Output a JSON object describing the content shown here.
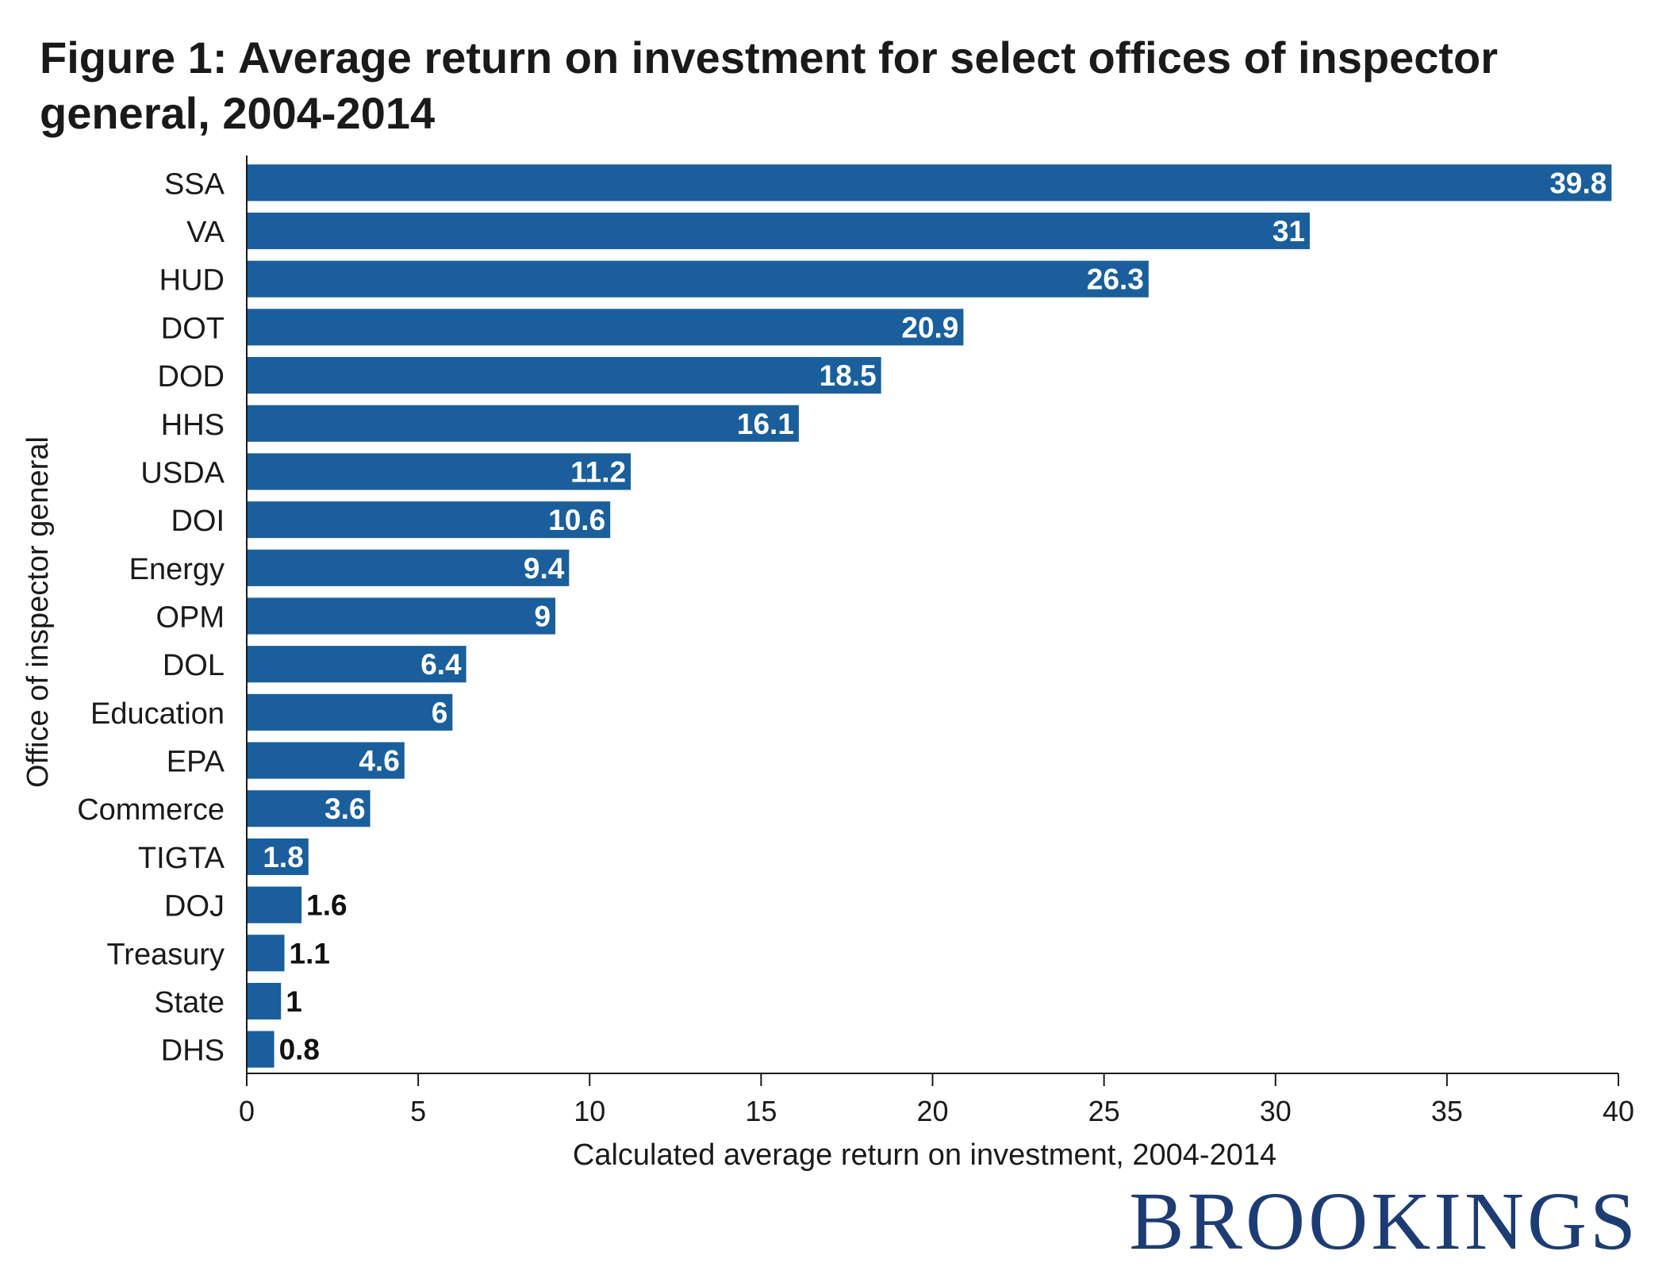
{
  "brand": "BROOKINGS",
  "chart_data": {
    "type": "bar",
    "orientation": "horizontal",
    "title": "Figure 1: Average return on investment for select offices of inspector general, 2004-2014",
    "xlabel": "Calculated average return on investment, 2004-2014",
    "ylabel": "Office of inspector general",
    "xlim": [
      0,
      40
    ],
    "xticks": [
      0,
      5,
      10,
      15,
      20,
      25,
      30,
      35,
      40
    ],
    "grid": false,
    "legend": "none",
    "bar_color": "#1a5f9c",
    "categories": [
      "SSA",
      "VA",
      "HUD",
      "DOT",
      "DOD",
      "HHS",
      "USDA",
      "DOI",
      "Energy",
      "OPM",
      "DOL",
      "Education",
      "EPA",
      "Commerce",
      "TIGTA",
      "DOJ",
      "Treasury",
      "State",
      "DHS"
    ],
    "values": [
      39.8,
      31,
      26.3,
      20.9,
      18.5,
      16.1,
      11.2,
      10.6,
      9.4,
      9,
      6.4,
      6,
      4.6,
      3.6,
      1.8,
      1.6,
      1.1,
      1,
      0.8
    ],
    "value_labels": [
      "39.8",
      "31",
      "26.3",
      "20.9",
      "18.5",
      "16.1",
      "11.2",
      "10.6",
      "9.4",
      "9",
      "6.4",
      "6",
      "4.6",
      "3.6",
      "1.8",
      "1.6",
      "1.1",
      "1",
      "0.8"
    ]
  }
}
